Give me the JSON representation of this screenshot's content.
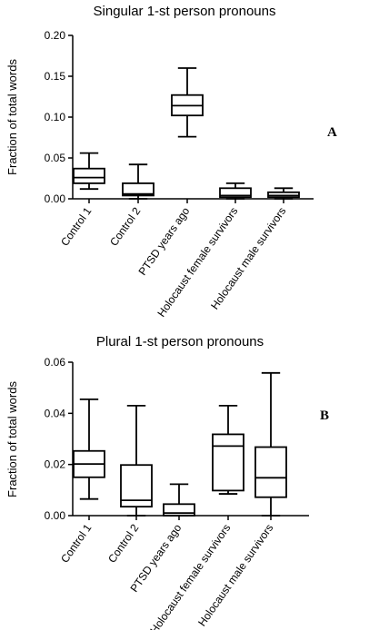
{
  "chart_data": [
    {
      "panel": "A",
      "type": "boxplot",
      "title": "Singular 1-st person pronouns",
      "ylabel": "Fraction of total words",
      "xlabel": "",
      "ylim": [
        0,
        0.2
      ],
      "yticks": [
        "0.00",
        "0.05",
        "0.10",
        "0.15",
        "0.20"
      ],
      "yticks_values": [
        0,
        0.05,
        0.1,
        0.15,
        0.2
      ],
      "categories": [
        "Control 1",
        "Control 2",
        "PTSD years ago",
        "Holocaust female survivors",
        "Holocaust male survivors"
      ],
      "boxes": [
        {
          "min": 0.012,
          "q1": 0.019,
          "median": 0.026,
          "q3": 0.037,
          "max": 0.056
        },
        {
          "min": 0.0,
          "q1": 0.004,
          "median": 0.006,
          "q3": 0.019,
          "max": 0.042
        },
        {
          "min": 0.076,
          "q1": 0.102,
          "median": 0.114,
          "q3": 0.127,
          "max": 0.16
        },
        {
          "min": 0.0,
          "q1": 0.002,
          "median": 0.004,
          "q3": 0.013,
          "max": 0.019
        },
        {
          "min": 0.0,
          "q1": 0.002,
          "median": 0.004,
          "q3": 0.008,
          "max": 0.013
        }
      ],
      "grid": false
    },
    {
      "panel": "B",
      "type": "boxplot",
      "title": "Plural 1-st person pronouns",
      "ylabel": "Fraction of total words",
      "xlabel": "",
      "ylim": [
        0,
        0.06
      ],
      "yticks": [
        "0.00",
        "0.02",
        "0.04",
        "0.06"
      ],
      "yticks_values": [
        0,
        0.02,
        0.04,
        0.06
      ],
      "categories": [
        "Control 1",
        "Control 2",
        "PTSD years ago",
        "Holocaust female survivors",
        "Holocaust male survivors"
      ],
      "boxes": [
        {
          "min": 0.0065,
          "q1": 0.015,
          "median": 0.0202,
          "q3": 0.0253,
          "max": 0.0455
        },
        {
          "min": 0.0,
          "q1": 0.0035,
          "median": 0.006,
          "q3": 0.0198,
          "max": 0.043
        },
        {
          "min": 0.0,
          "q1": 0.0,
          "median": 0.001,
          "q3": 0.0045,
          "max": 0.0123
        },
        {
          "min": 0.0085,
          "q1": 0.0098,
          "median": 0.0272,
          "q3": 0.0318,
          "max": 0.043
        },
        {
          "min": 0.0,
          "q1": 0.0072,
          "median": 0.0148,
          "q3": 0.0268,
          "max": 0.0558
        }
      ],
      "grid": false
    }
  ]
}
